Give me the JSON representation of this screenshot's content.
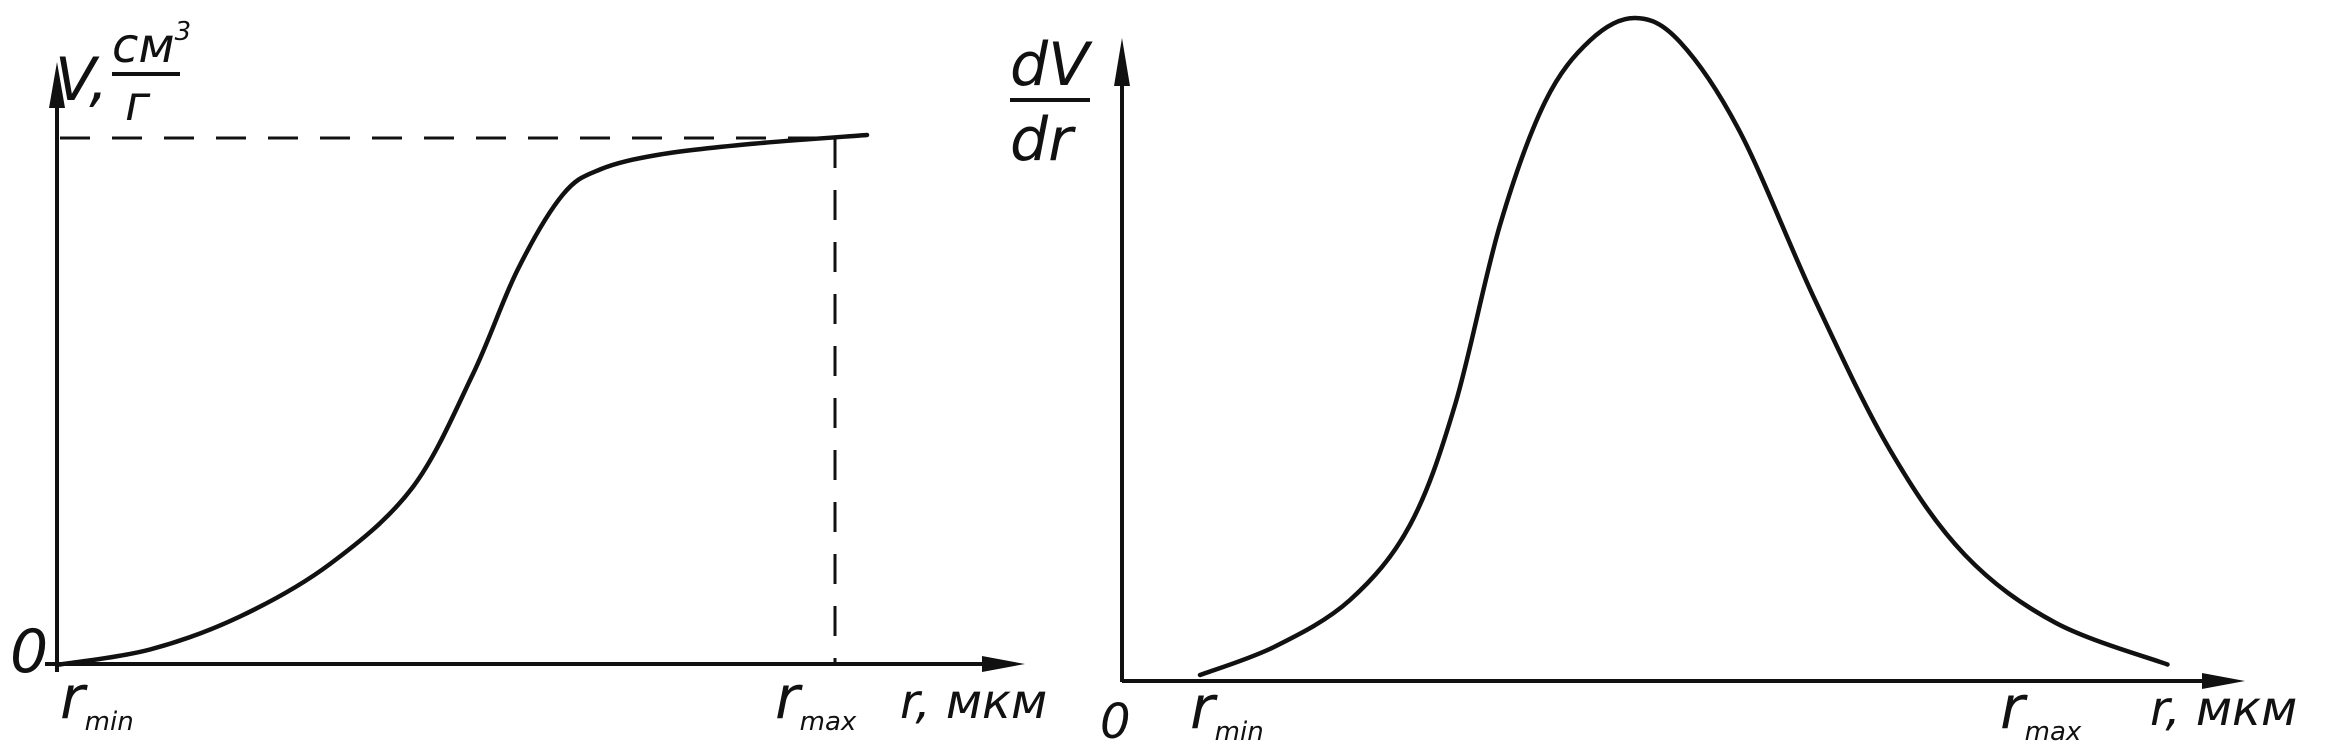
{
  "left_plot": {
    "y_label": {
      "symbol": "V,",
      "unit_numerator": "см",
      "unit_exponent": "3",
      "unit_denominator": "г"
    },
    "origin": "0",
    "x_marks": [
      {
        "symbol": "r",
        "subscript": "min"
      },
      {
        "symbol": "r",
        "subscript": "max"
      }
    ],
    "x_label": "r, мкм"
  },
  "right_plot": {
    "y_label": {
      "numerator": "dV",
      "denominator": "dr"
    },
    "origin": "0",
    "x_marks": [
      {
        "symbol": "r",
        "subscript": "min"
      },
      {
        "symbol": "r",
        "subscript": "max"
      }
    ],
    "x_label": "r, мкм"
  }
}
